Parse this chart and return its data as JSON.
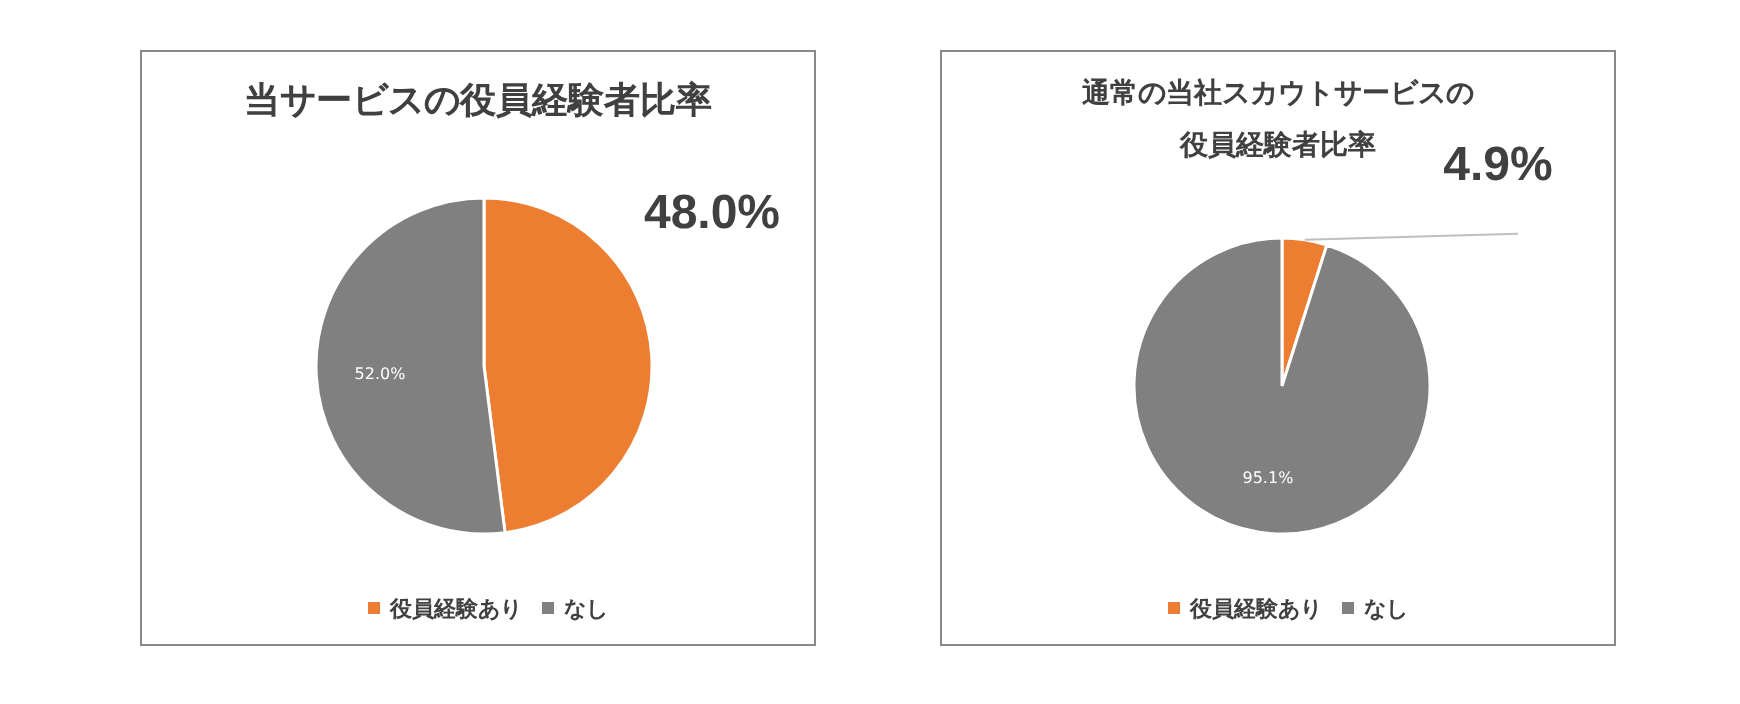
{
  "chart_data": [
    {
      "type": "pie",
      "title": "当サービスの役員経験者比率",
      "categories": [
        "役員経験あり",
        "なし"
      ],
      "values": [
        48.0,
        52.0
      ],
      "colors": [
        "#ed7d31",
        "#808080"
      ],
      "value_labels": [
        "48.0%",
        "52.0%"
      ],
      "legend": "bottom"
    },
    {
      "type": "pie",
      "title": "通常の当社スカウトサービスの役員経験者比率",
      "categories": [
        "役員経験あり",
        "なし"
      ],
      "values": [
        4.9,
        95.1
      ],
      "colors": [
        "#ed7d31",
        "#808080"
      ],
      "value_labels": [
        "4.9%",
        "95.1%"
      ],
      "legend": "bottom"
    }
  ]
}
